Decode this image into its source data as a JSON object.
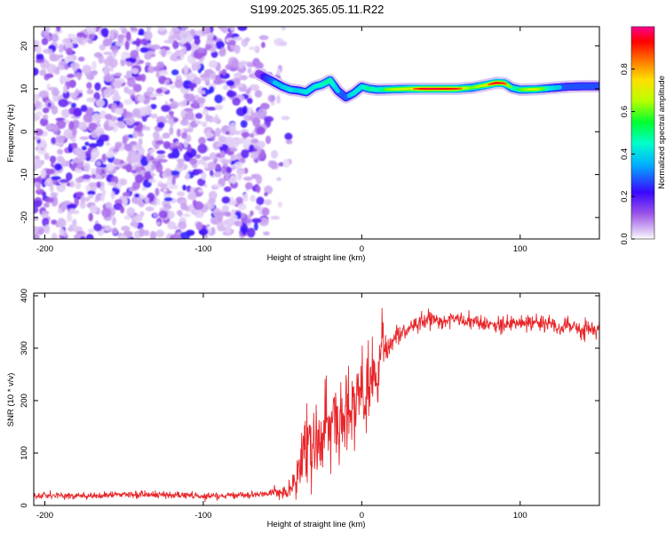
{
  "chart_data": [
    {
      "type": "heatmap",
      "title": "S199.2025.365.05.11.R22",
      "xlabel": "Height of straight line (km)",
      "ylabel": "Frequency (Hz)",
      "xlim": [
        -207,
        150
      ],
      "ylim": [
        -25,
        24.5
      ],
      "xticks": [
        -200,
        -100,
        0,
        100
      ],
      "xtick_labels": [
        "-200",
        "-100",
        "0",
        "100"
      ],
      "yticks": [
        -20,
        -10,
        0,
        10,
        20
      ],
      "ytick_labels": [
        "-20",
        "-10",
        "0",
        "10",
        "20"
      ],
      "noise_region_x": [
        -207,
        -50
      ],
      "ridge": {
        "x": [
          -65,
          -60,
          -55,
          -50,
          -45,
          -40,
          -35,
          -30,
          -25,
          -20,
          -15,
          -10,
          -5,
          0,
          5,
          10,
          20,
          30,
          40,
          50,
          60,
          70,
          80,
          85,
          90,
          95,
          100,
          110,
          120,
          130,
          140,
          150
        ],
        "frequency": [
          13.5,
          12.5,
          11.5,
          10.5,
          9.8,
          9.6,
          9.2,
          10.5,
          11.0,
          12.0,
          9.5,
          8.0,
          9.0,
          10.5,
          10.0,
          9.8,
          9.9,
          10.0,
          10.0,
          10.0,
          10.0,
          10.3,
          11.0,
          11.4,
          11.3,
          10.2,
          9.8,
          9.9,
          10.2,
          10.5,
          10.6,
          10.6
        ],
        "amplitude": [
          0.3,
          0.45,
          0.55,
          0.55,
          0.6,
          0.55,
          0.6,
          0.6,
          0.65,
          0.7,
          0.55,
          0.5,
          0.6,
          0.6,
          0.7,
          0.65,
          0.75,
          0.8,
          0.95,
          0.95,
          0.9,
          0.7,
          0.85,
          0.95,
          0.9,
          0.65,
          0.7,
          0.8,
          0.6,
          0.5,
          0.5,
          0.5
        ]
      },
      "colorbar": {
        "label": "Normalized spectral amplitude",
        "range": [
          0.0,
          1.0
        ],
        "ticks": [
          0.0,
          0.2,
          0.4,
          0.6,
          0.8
        ],
        "tick_labels": [
          "0.0",
          "0.2",
          "0.4",
          "0.6",
          "0.8"
        ]
      }
    },
    {
      "type": "line",
      "xlabel": "Height of straight line (km)",
      "ylabel": "SNR (10 * v/v)",
      "xlim": [
        -207,
        150
      ],
      "ylim": [
        0,
        405
      ],
      "xticks": [
        -200,
        -100,
        0,
        100
      ],
      "xtick_labels": [
        "-200",
        "-100",
        "0",
        "100"
      ],
      "yticks": [
        0,
        100,
        200,
        300,
        400
      ],
      "ytick_labels": [
        "0",
        "100",
        "200",
        "300",
        "400"
      ],
      "series": [
        {
          "name": "SNR",
          "color": "#e8262a",
          "x": [
            -207,
            -180,
            -150,
            -120,
            -90,
            -60,
            -45,
            -40,
            -35,
            -30,
            -25,
            -20,
            -15,
            -10,
            -5,
            0,
            5,
            10,
            15,
            20,
            30,
            40,
            50,
            60,
            70,
            80,
            90,
            100,
            110,
            120,
            130,
            140,
            150
          ],
          "y": [
            20,
            18,
            20,
            20,
            18,
            22,
            28,
            60,
            100,
            110,
            130,
            150,
            160,
            175,
            185,
            200,
            220,
            250,
            290,
            320,
            340,
            355,
            352,
            355,
            350,
            345,
            345,
            350,
            348,
            345,
            340,
            338,
            335
          ],
          "noise_amplitude": [
            6,
            6,
            6,
            6,
            6,
            6,
            15,
            60,
            80,
            70,
            70,
            75,
            75,
            75,
            75,
            70,
            70,
            70,
            45,
            25,
            15,
            15,
            15,
            15,
            15,
            15,
            15,
            15,
            15,
            15,
            15,
            15,
            15
          ]
        }
      ]
    }
  ]
}
